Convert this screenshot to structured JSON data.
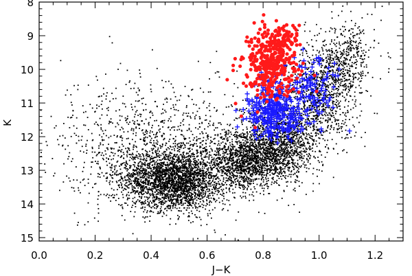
{
  "chart_data": {
    "type": "scatter",
    "title": "",
    "xlabel": "J−K",
    "ylabel": "K",
    "xlim": [
      0.0,
      1.3
    ],
    "ylim": [
      15.1,
      8.0
    ],
    "y_inverted": true,
    "x_ticks": [
      0.0,
      0.2,
      0.4,
      0.6,
      0.8,
      1.0,
      1.2
    ],
    "x_tick_labels": [
      "0.0",
      "0.2",
      "0.4",
      "0.6",
      "0.8",
      "1.0",
      "1.2"
    ],
    "y_ticks": [
      8,
      9,
      10,
      11,
      12,
      13,
      14,
      15
    ],
    "y_tick_labels": [
      "8",
      "9",
      "10",
      "11",
      "12",
      "13",
      "14",
      "15"
    ],
    "grid": false,
    "colors": {
      "black": "#000000",
      "red": "#ff1a1a",
      "blue": "#1a1aff"
    },
    "series": [
      {
        "marker": "dot",
        "color": "black",
        "clusters": [
          {
            "x_center": 0.48,
            "y_center": 13.3,
            "x_spread": 0.09,
            "y_spread": 0.45,
            "count": 2600
          },
          {
            "x_center": 0.74,
            "y_center": 12.7,
            "x_spread": 0.07,
            "y_spread": 0.4,
            "count": 1300
          },
          {
            "x_center": 0.86,
            "y_center": 12.2,
            "x_spread": 0.07,
            "y_spread": 0.55,
            "count": 1300
          },
          {
            "x_center": 1.0,
            "y_center": 10.8,
            "x_spread": 0.07,
            "y_spread": 0.7,
            "count": 900
          },
          {
            "x_center": 1.09,
            "y_center": 9.7,
            "x_spread": 0.05,
            "y_spread": 0.55,
            "count": 450
          },
          {
            "x_center": 0.42,
            "y_center": 12.3,
            "x_spread": 0.18,
            "y_spread": 1.0,
            "count": 1100
          }
        ]
      },
      {
        "marker": "plus",
        "color": "blue",
        "clusters": [
          {
            "x_center": 0.84,
            "y_center": 11.2,
            "x_spread": 0.05,
            "y_spread": 0.45,
            "count": 330
          },
          {
            "x_center": 0.97,
            "y_center": 10.6,
            "x_spread": 0.05,
            "y_spread": 0.5,
            "count": 110
          }
        ]
      },
      {
        "marker": "filled-circle",
        "color": "red",
        "clusters": [
          {
            "x_center": 0.83,
            "y_center": 9.8,
            "x_spread": 0.05,
            "y_spread": 0.5,
            "count": 340
          },
          {
            "x_center": 0.87,
            "y_center": 9.1,
            "x_spread": 0.035,
            "y_spread": 0.25,
            "count": 80
          }
        ]
      }
    ]
  }
}
